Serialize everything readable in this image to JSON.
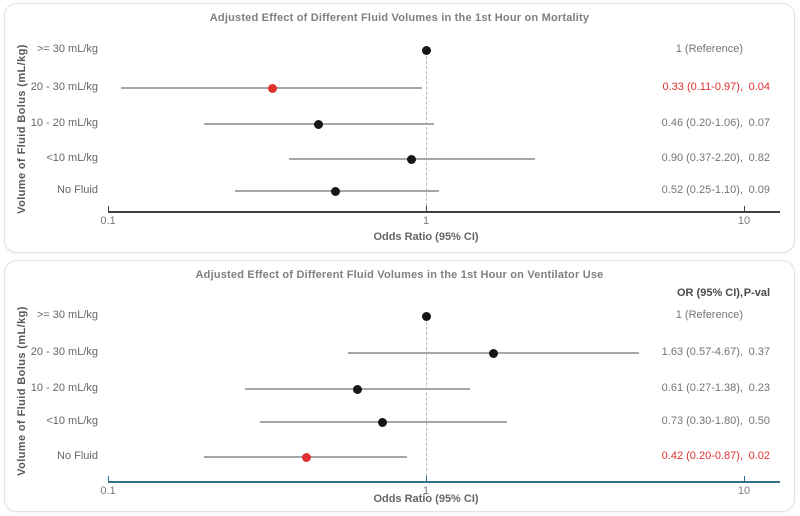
{
  "colors": {
    "significant": "#e03131",
    "marker": "#161616",
    "ci_line": "#a6a6a6",
    "reference_line": "#b6b6b6",
    "axis_top": "#404040",
    "axis_bottom": "#31708f",
    "title_text": "#7f7f7f",
    "label_text": "#666666",
    "annotation_text": "#757575",
    "tick_text": "#7a7a7a"
  },
  "chart_data": [
    {
      "type": "forest",
      "title": "Adjusted Effect of Different Fluid Volumes in the 1st Hour on Mortality",
      "ylabel": "Volume of Fluid Bolus (mL/kg)",
      "xlabel": "Odds Ratio (95% CI)",
      "x_scale": "log10",
      "x_tick_labels": [
        "0.1",
        "1",
        "10"
      ],
      "x_tick_values": [
        0.1,
        1,
        10
      ],
      "xlim": [
        0.08,
        13
      ],
      "reference_value": 1,
      "column_headers": null,
      "rows": [
        {
          "label": ">= 30 mL/kg",
          "or": 1.0,
          "ci_low": null,
          "ci_high": null,
          "or_text": "1 (Reference)",
          "p_text": "",
          "significant": false,
          "is_reference": true
        },
        {
          "label": "20 - 30 mL/kg",
          "or": 0.33,
          "ci_low": 0.11,
          "ci_high": 0.97,
          "or_text": "0.33 (0.11-0.97),",
          "p_text": "0.04",
          "significant": true,
          "is_reference": false
        },
        {
          "label": "10 - 20 mL/kg",
          "or": 0.46,
          "ci_low": 0.2,
          "ci_high": 1.06,
          "or_text": "0.46 (0.20-1.06),",
          "p_text": "0.07",
          "significant": false,
          "is_reference": false
        },
        {
          "label": "<10 mL/kg",
          "or": 0.9,
          "ci_low": 0.37,
          "ci_high": 2.2,
          "or_text": "0.90 (0.37-2.20),",
          "p_text": "0.82",
          "significant": false,
          "is_reference": false
        },
        {
          "label": "No Fluid",
          "or": 0.52,
          "ci_low": 0.25,
          "ci_high": 1.1,
          "or_text": "0.52 (0.25-1.10),",
          "p_text": "0.09",
          "significant": false,
          "is_reference": false
        }
      ]
    },
    {
      "type": "forest",
      "title": "Adjusted Effect of Different Fluid Volumes in the 1st Hour on Ventilator Use",
      "ylabel": "Volume of Fluid Bolus (mL/kg)",
      "xlabel": "Odds Ratio (95% CI)",
      "x_scale": "log10",
      "x_tick_labels": [
        "0.1",
        "1",
        "10"
      ],
      "x_tick_values": [
        0.1,
        1,
        10
      ],
      "xlim": [
        0.08,
        13
      ],
      "reference_value": 1,
      "column_headers": {
        "or": "OR (95% CI),",
        "pval": "P-val"
      },
      "rows": [
        {
          "label": ">= 30 mL/kg",
          "or": 1.0,
          "ci_low": null,
          "ci_high": null,
          "or_text": "1 (Reference)",
          "p_text": "",
          "significant": false,
          "is_reference": true
        },
        {
          "label": "20 - 30 mL/kg",
          "or": 1.63,
          "ci_low": 0.57,
          "ci_high": 4.67,
          "or_text": "1.63 (0.57-4.67),",
          "p_text": "0.37",
          "significant": false,
          "is_reference": false
        },
        {
          "label": "10 - 20 mL/kg",
          "or": 0.61,
          "ci_low": 0.27,
          "ci_high": 1.38,
          "or_text": "0.61 (0.27-1.38),",
          "p_text": "0.23",
          "significant": false,
          "is_reference": false
        },
        {
          "label": "<10 mL/kg",
          "or": 0.73,
          "ci_low": 0.3,
          "ci_high": 1.8,
          "or_text": "0.73 (0.30-1.80),",
          "p_text": "0.50",
          "significant": false,
          "is_reference": false
        },
        {
          "label": "No Fluid",
          "or": 0.42,
          "ci_low": 0.2,
          "ci_high": 0.87,
          "or_text": "0.42 (0.20-0.87),",
          "p_text": "0.02",
          "significant": true,
          "is_reference": false
        }
      ]
    }
  ]
}
